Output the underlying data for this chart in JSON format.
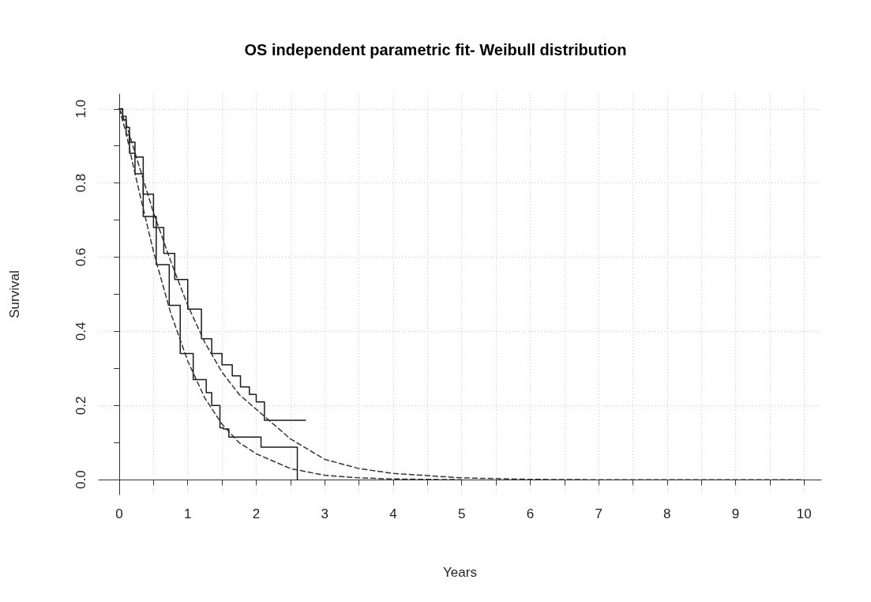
{
  "chart_data": {
    "type": "line",
    "title": "OS independent parametric fit- Weibull distribution",
    "xlabel": "Years",
    "ylabel": "Survival",
    "xlim": [
      -0.3,
      10.25
    ],
    "ylim": [
      -0.04,
      1.04
    ],
    "xticks": [
      0,
      {
        "value": 0.5,
        "label": null
      },
      1,
      {
        "value": 1.5,
        "label": null
      },
      2,
      {
        "value": 2.5,
        "label": null
      },
      3,
      {
        "value": 3.5,
        "label": null
      },
      4,
      {
        "value": 4.5,
        "label": null
      },
      5,
      {
        "value": 5.5,
        "label": null
      },
      6,
      {
        "value": 6.5,
        "label": null
      },
      7,
      {
        "value": 7.5,
        "label": null
      },
      8,
      {
        "value": 8.5,
        "label": null
      },
      9,
      {
        "value": 9.5,
        "label": null
      },
      10
    ],
    "yticks": [
      {
        "value": 0,
        "label": "0.0"
      },
      {
        "value": 0.1,
        "label": null
      },
      0.2,
      {
        "value": 0.3,
        "label": null
      },
      0.4,
      {
        "value": 0.5,
        "label": null
      },
      0.6,
      {
        "value": 0.7,
        "label": null
      },
      0.8,
      {
        "value": 0.9,
        "label": null
      },
      {
        "value": 1,
        "label": "1.0"
      }
    ],
    "grid": true,
    "marker": "none",
    "series": [
      {
        "type": "step",
        "color": "#1a1a1a",
        "line_style": "solid",
        "x": [
          0,
          0.05,
          0.1,
          0.15,
          0.23,
          0.35,
          0.5,
          0.65,
          0.81,
          1.0,
          1.2,
          1.35,
          1.5,
          1.65,
          1.77,
          1.9,
          2.0,
          2.12,
          2.72
        ],
        "values": [
          1,
          0.98,
          0.95,
          0.91,
          0.87,
          0.77,
          0.68,
          0.61,
          0.54,
          0.46,
          0.38,
          0.34,
          0.31,
          0.28,
          0.25,
          0.23,
          0.21,
          0.16,
          0.16
        ]
      },
      {
        "type": "step",
        "color": "#1a1a1a",
        "line_style": "solid",
        "x": [
          0,
          0.05,
          0.1,
          0.15,
          0.23,
          0.35,
          0.54,
          0.73,
          0.89,
          1.08,
          1.27,
          1.35,
          1.47,
          1.52,
          1.6,
          2.07,
          2.6
        ],
        "values": [
          1,
          0.97,
          0.93,
          0.88,
          0.825,
          0.71,
          0.58,
          0.47,
          0.34,
          0.27,
          0.235,
          0.2,
          0.14,
          0.137,
          0.115,
          0.088,
          0
        ]
      },
      {
        "color": "#333333",
        "line_style": "dashed",
        "x": [
          0,
          0.1,
          0.2,
          0.3,
          0.5,
          0.75,
          1,
          1.25,
          1.5,
          1.75,
          2,
          2.5,
          3,
          3.5,
          4,
          5,
          6,
          7,
          8,
          10
        ],
        "values": [
          1,
          0.96,
          0.9,
          0.84,
          0.72,
          0.59,
          0.47,
          0.37,
          0.29,
          0.23,
          0.19,
          0.11,
          0.055,
          0.03,
          0.017,
          0.005,
          0.001,
          0,
          0,
          0
        ]
      },
      {
        "color": "#333333",
        "line_style": "dashed",
        "x": [
          0,
          0.1,
          0.2,
          0.3,
          0.5,
          0.75,
          1,
          1.25,
          1.5,
          1.75,
          2,
          2.5,
          3,
          3.5,
          4,
          5
        ],
        "values": [
          1,
          0.935,
          0.85,
          0.77,
          0.615,
          0.45,
          0.32,
          0.22,
          0.15,
          0.1,
          0.07,
          0.03,
          0.012,
          0.005,
          0.002,
          0
        ]
      }
    ]
  }
}
